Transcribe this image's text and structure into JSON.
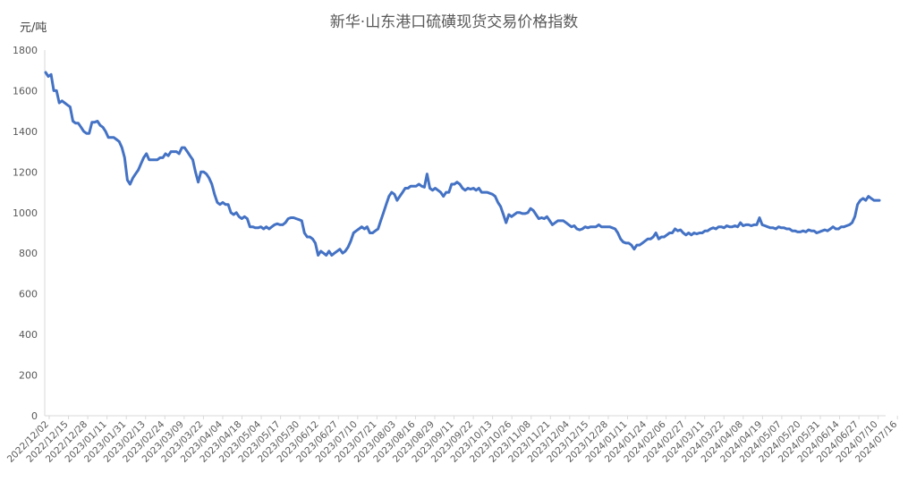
{
  "chart_data": {
    "type": "line",
    "title": "新华·山东港口硫磺现货交易价格指数",
    "ylabel": "元/吨",
    "xlabel": "",
    "ylim": [
      0,
      1800
    ],
    "yticks": [
      0,
      200,
      400,
      600,
      800,
      1000,
      1200,
      1400,
      1600,
      1800
    ],
    "grid": false,
    "legend": "none",
    "color": "#4472C4",
    "xtick_labels": [
      "2022/12/02",
      "2022/12/15",
      "2022/12/28",
      "2023/01/11",
      "2023/01/31",
      "2023/02/13",
      "2023/02/24",
      "2023/03/09",
      "2023/03/22",
      "2023/04/04",
      "2023/04/18",
      "2023/05/04",
      "2023/05/17",
      "2023/05/30",
      "2023/06/12",
      "2023/06/27",
      "2023/07/10",
      "2023/07/21",
      "2023/08/03",
      "2023/08/16",
      "2023/08/29",
      "2023/09/11",
      "2023/09/22",
      "2023/10/13",
      "2023/10/26",
      "2023/11/08",
      "2023/11/21",
      "2023/12/04",
      "2023/12/15",
      "2023/12/28",
      "2024/01/11",
      "2024/01/24",
      "2024/02/06",
      "2024/02/27",
      "2024/03/11",
      "2024/03/22",
      "2024/04/08",
      "2024/04/19",
      "2024/05/07",
      "2024/05/20",
      "2024/05/31",
      "2024/06/14",
      "2024/06/27",
      "2024/07/10",
      "2024/07/16"
    ],
    "series": [
      {
        "values": [
          1690,
          1670,
          1680,
          1600,
          1600,
          1540,
          1550,
          1540,
          1530,
          1520,
          1450,
          1440,
          1440,
          1420,
          1400,
          1390,
          1390,
          1445,
          1445,
          1450,
          1430,
          1420,
          1400,
          1370,
          1370,
          1370,
          1360,
          1350,
          1320,
          1270,
          1160,
          1140,
          1170,
          1190,
          1210,
          1240,
          1270,
          1290,
          1260,
          1260,
          1260,
          1260,
          1270,
          1270,
          1290,
          1280,
          1300,
          1300,
          1300,
          1290,
          1320,
          1320,
          1300,
          1280,
          1260,
          1200,
          1150,
          1200,
          1200,
          1190,
          1170,
          1140,
          1090,
          1050,
          1040,
          1050,
          1040,
          1040,
          1000,
          990,
          1000,
          980,
          970,
          980,
          970,
          930,
          930,
          925,
          925,
          930,
          920,
          930,
          920,
          930,
          940,
          945,
          940,
          940,
          950,
          970,
          975,
          975,
          970,
          965,
          960,
          900,
          880,
          880,
          870,
          850,
          790,
          810,
          800,
          790,
          810,
          790,
          800,
          810,
          820,
          800,
          810,
          830,
          860,
          900,
          910,
          920,
          930,
          920,
          930,
          900,
          900,
          910,
          920,
          960,
          1000,
          1040,
          1080,
          1100,
          1090,
          1060,
          1080,
          1100,
          1120,
          1120,
          1130,
          1130,
          1130,
          1140,
          1130,
          1125,
          1190,
          1120,
          1110,
          1120,
          1110,
          1100,
          1080,
          1100,
          1100,
          1140,
          1140,
          1150,
          1140,
          1120,
          1110,
          1120,
          1115,
          1120,
          1110,
          1120,
          1100,
          1100,
          1100,
          1095,
          1090,
          1080,
          1050,
          1030,
          990,
          950,
          990,
          980,
          990,
          1000,
          1000,
          995,
          995,
          1000,
          1020,
          1010,
          990,
          970,
          975,
          970,
          980,
          960,
          940,
          950,
          960,
          960,
          960,
          950,
          940,
          930,
          935,
          920,
          915,
          920,
          930,
          925,
          930,
          930,
          930,
          940,
          930,
          930,
          930,
          930,
          925,
          920,
          900,
          870,
          855,
          850,
          850,
          840,
          820,
          840,
          840,
          850,
          860,
          870,
          870,
          880,
          900,
          870,
          880,
          880,
          890,
          900,
          900,
          920,
          910,
          915,
          900,
          890,
          900,
          890,
          900,
          895,
          900,
          900,
          910,
          910,
          920,
          925,
          920,
          930,
          930,
          925,
          935,
          930,
          930,
          935,
          930,
          950,
          935,
          940,
          940,
          935,
          940,
          940,
          975,
          940,
          935,
          930,
          925,
          925,
          920,
          930,
          925,
          925,
          920,
          920,
          910,
          910,
          905,
          905,
          910,
          905,
          915,
          910,
          910,
          900,
          905,
          910,
          915,
          910,
          920,
          930,
          920,
          920,
          930,
          930,
          935,
          940,
          950,
          980,
          1040,
          1060,
          1070,
          1060,
          1080,
          1070,
          1060,
          1060,
          1060
        ]
      }
    ]
  }
}
